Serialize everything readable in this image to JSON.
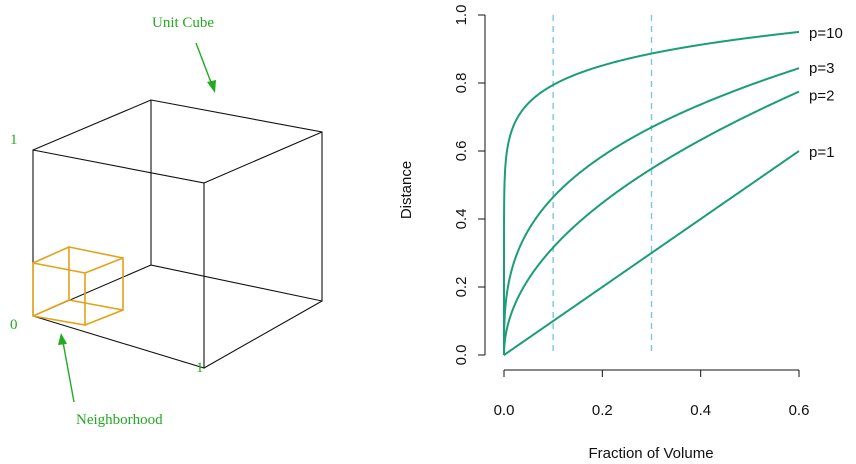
{
  "cube_panel": {
    "title_label": "Unit Cube",
    "neighborhood_label": "Neighborhood",
    "axis_label_one_vertical": "1",
    "axis_label_zero": "0",
    "axis_label_one_horizontal": "1",
    "cube_color": "#111111",
    "neighborhood_color": "#e3a21a",
    "annotation_color": "#22aa22"
  },
  "chart_data": {
    "type": "line",
    "xlabel": "Fraction of Volume",
    "ylabel": "Distance",
    "xlim": [
      -0.02,
      0.62
    ],
    "ylim": [
      0.0,
      1.0
    ],
    "x_ticks": [
      "0.0",
      "0.2",
      "0.4",
      "0.6"
    ],
    "x_tick_values": [
      0.0,
      0.2,
      0.4,
      0.6
    ],
    "y_ticks": [
      "0.0",
      "0.2",
      "0.4",
      "0.6",
      "0.8",
      "1.0"
    ],
    "y_tick_values": [
      0.0,
      0.2,
      0.4,
      0.6,
      0.8,
      1.0
    ],
    "x_range": [
      0.0,
      0.6
    ],
    "series": [
      {
        "name": "p=10",
        "p": 10
      },
      {
        "name": "p=3",
        "p": 3
      },
      {
        "name": "p=2",
        "p": 2
      },
      {
        "name": "p=1",
        "p": 1
      }
    ],
    "curve_formula": "distance = fraction_of_volume^(1/p)",
    "reference_lines_x": [
      0.1,
      0.3
    ],
    "curve_color": "#1a9e77",
    "reference_color": "#7cc4e6",
    "grid": false,
    "legend": "labels at end of each curve"
  }
}
